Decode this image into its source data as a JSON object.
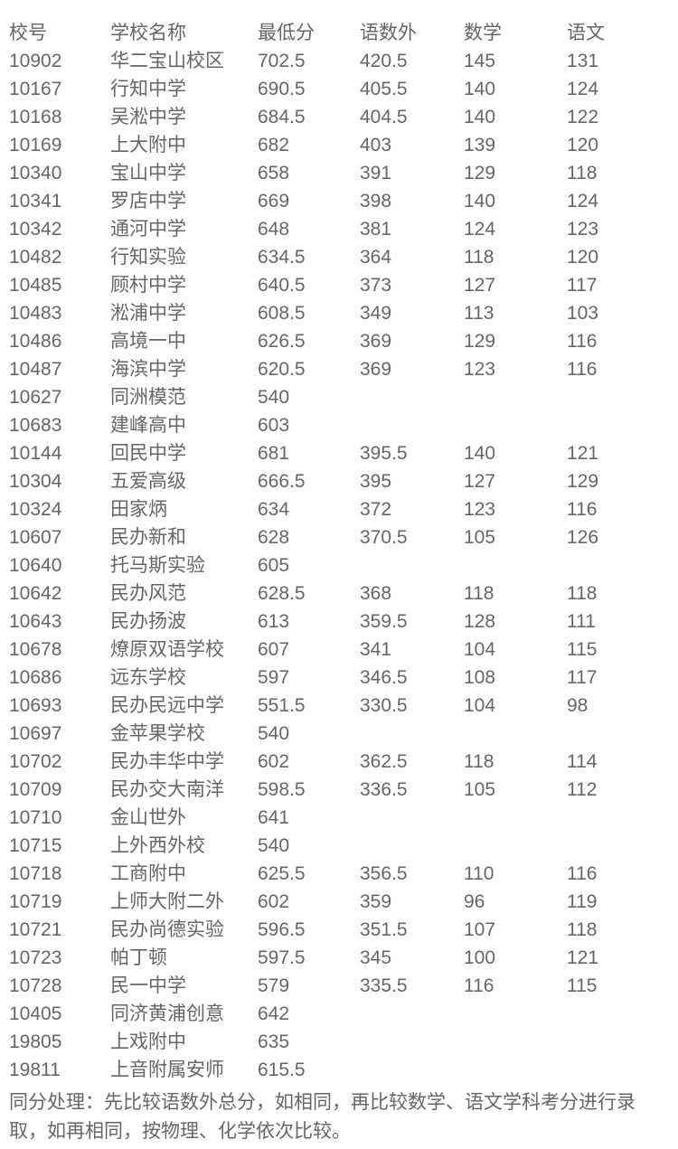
{
  "page": {
    "background_color": "#ffffff",
    "text_color": "#666666"
  },
  "table": {
    "columns": [
      {
        "key": "school_code",
        "label": "校号"
      },
      {
        "key": "school_name",
        "label": "学校名称"
      },
      {
        "key": "min_score",
        "label": "最低分"
      },
      {
        "key": "chi_math_eng",
        "label": "语数外"
      },
      {
        "key": "math",
        "label": "数学"
      },
      {
        "key": "chinese",
        "label": "语文"
      }
    ],
    "rows": [
      [
        "10902",
        "华二宝山校区",
        "702.5",
        "420.5",
        "145",
        "131"
      ],
      [
        "10167",
        "行知中学",
        "690.5",
        "405.5",
        "140",
        "124"
      ],
      [
        "10168",
        "吴淞中学",
        "684.5",
        "404.5",
        "140",
        "122"
      ],
      [
        "10169",
        "上大附中",
        "682",
        "403",
        "139",
        "120"
      ],
      [
        "10340",
        "宝山中学",
        "658",
        "391",
        "129",
        "118"
      ],
      [
        "10341",
        "罗店中学",
        "669",
        "398",
        "140",
        "124"
      ],
      [
        "10342",
        "通河中学",
        "648",
        "381",
        "124",
        "123"
      ],
      [
        "10482",
        "行知实验",
        "634.5",
        "364",
        "118",
        "120"
      ],
      [
        "10485",
        "顾村中学",
        "640.5",
        "373",
        "127",
        "117"
      ],
      [
        "10483",
        "淞浦中学",
        "608.5",
        "349",
        "113",
        "103"
      ],
      [
        "10486",
        "高境一中",
        "626.5",
        "369",
        "129",
        "116"
      ],
      [
        "10487",
        "海滨中学",
        "620.5",
        "369",
        "123",
        "116"
      ],
      [
        "10627",
        "同洲模范",
        "540",
        "",
        "",
        ""
      ],
      [
        "10683",
        "建峰高中",
        "603",
        "",
        "",
        ""
      ],
      [
        "10144",
        "回民中学",
        "681",
        "395.5",
        "140",
        "121"
      ],
      [
        "10304",
        "五爱高级",
        "666.5",
        "395",
        "127",
        "129"
      ],
      [
        "10324",
        "田家炳",
        "634",
        "372",
        "123",
        "116"
      ],
      [
        "10607",
        "民办新和",
        "628",
        "370.5",
        "105",
        "126"
      ],
      [
        "10640",
        "托马斯实验",
        "605",
        "",
        "",
        ""
      ],
      [
        "10642",
        "民办风范",
        "628.5",
        "368",
        "118",
        "118"
      ],
      [
        "10643",
        "民办扬波",
        "613",
        "359.5",
        "128",
        "111"
      ],
      [
        "10678",
        "燎原双语学校",
        "607",
        "341",
        "104",
        "115"
      ],
      [
        "10686",
        "远东学校",
        "597",
        "346.5",
        "108",
        "117"
      ],
      [
        "10693",
        "民办民远中学",
        "551.5",
        "330.5",
        "104",
        "98"
      ],
      [
        "10697",
        "金苹果学校",
        "540",
        "",
        "",
        ""
      ],
      [
        "10702",
        "民办丰华中学",
        "602",
        "362.5",
        "118",
        "114"
      ],
      [
        "10709",
        "民办交大南洋",
        "598.5",
        "336.5",
        "105",
        "112"
      ],
      [
        "10710",
        "金山世外",
        "641",
        "",
        "",
        ""
      ],
      [
        "10715",
        "上外西外校",
        "540",
        "",
        "",
        ""
      ],
      [
        "10718",
        "工商附中",
        "625.5",
        "356.5",
        "110",
        "116"
      ],
      [
        "10719",
        "上师大附二外",
        "602",
        "359",
        "96",
        "119"
      ],
      [
        "10721",
        "民办尚德实验",
        "596.5",
        "351.5",
        "107",
        "118"
      ],
      [
        "10723",
        "帕丁顿",
        "597.5",
        "345",
        "100",
        "121"
      ],
      [
        "10728",
        "民一中学",
        "579",
        "335.5",
        "116",
        "115"
      ],
      [
        "10405",
        "同济黄浦创意",
        "642",
        "",
        "",
        ""
      ],
      [
        "19805",
        "上戏附中",
        "635",
        "",
        "",
        ""
      ],
      [
        "19811",
        "上音附属安师",
        "615.5",
        "",
        "",
        ""
      ]
    ]
  },
  "footer": {
    "note": "同分处理：先比较语数外总分，如相同，再比较数学、语文学科考分进行录取，如再相同，按物理、化学依次比较。"
  }
}
